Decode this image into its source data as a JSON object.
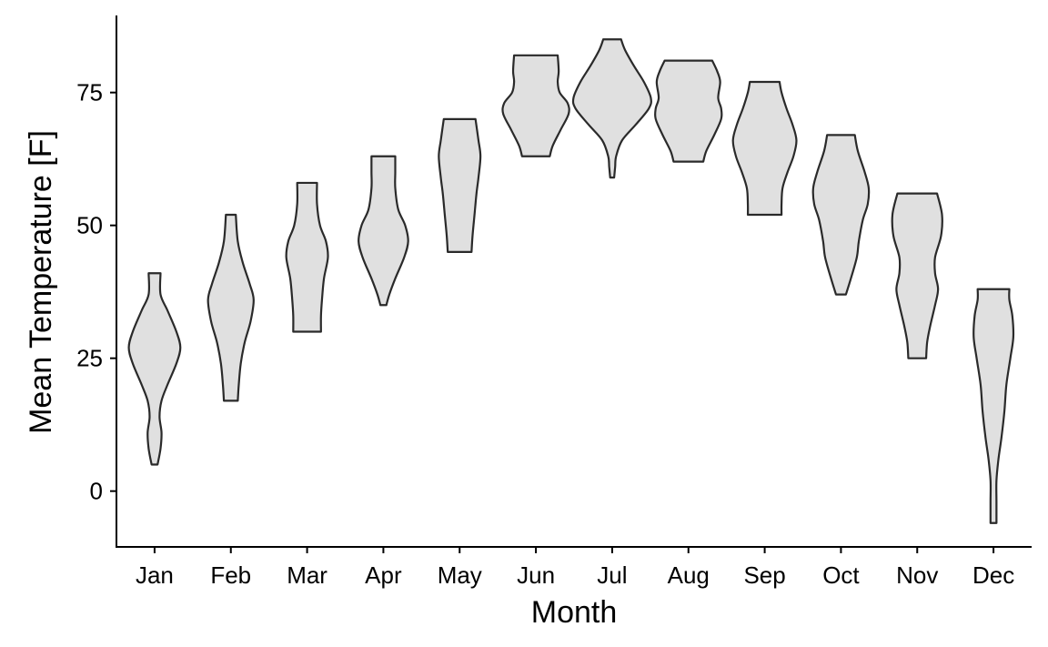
{
  "chart_data": {
    "type": "violin",
    "xlabel": "Month",
    "ylabel": "Mean Temperature [F]",
    "ylim": [
      -10.5,
      89.5
    ],
    "yticks": [
      0,
      25,
      50,
      75
    ],
    "grid": false,
    "legend": "none",
    "colors": {
      "fill": "#e0e0e0",
      "stroke": "#2a2a2a"
    },
    "categories": [
      "Jan",
      "Feb",
      "Mar",
      "Apr",
      "May",
      "Jun",
      "Jul",
      "Aug",
      "Sep",
      "Oct",
      "Nov",
      "Dec"
    ],
    "violins": [
      {
        "month": "Jan",
        "min": 5,
        "max": 41,
        "density": [
          [
            5,
            0.03
          ],
          [
            8,
            0.06
          ],
          [
            11,
            0.07
          ],
          [
            14,
            0.05
          ],
          [
            17,
            0.07
          ],
          [
            20,
            0.13
          ],
          [
            24,
            0.22
          ],
          [
            27,
            0.26
          ],
          [
            30,
            0.22
          ],
          [
            34,
            0.13
          ],
          [
            37,
            0.06
          ],
          [
            41,
            0.06
          ]
        ]
      },
      {
        "month": "Feb",
        "min": 17,
        "max": 52,
        "density": [
          [
            17,
            0.07
          ],
          [
            20,
            0.08
          ],
          [
            24,
            0.1
          ],
          [
            28,
            0.14
          ],
          [
            32,
            0.2
          ],
          [
            36,
            0.23
          ],
          [
            39,
            0.19
          ],
          [
            43,
            0.12
          ],
          [
            47,
            0.07
          ],
          [
            52,
            0.05
          ]
        ]
      },
      {
        "month": "Mar",
        "min": 30,
        "max": 58,
        "density": [
          [
            30,
            0.14
          ],
          [
            33,
            0.14
          ],
          [
            36,
            0.15
          ],
          [
            40,
            0.17
          ],
          [
            44,
            0.21
          ],
          [
            47,
            0.19
          ],
          [
            50,
            0.13
          ],
          [
            54,
            0.1
          ],
          [
            58,
            0.1
          ]
        ]
      },
      {
        "month": "Apr",
        "min": 35,
        "max": 63,
        "density": [
          [
            35,
            0.03
          ],
          [
            37,
            0.06
          ],
          [
            40,
            0.12
          ],
          [
            44,
            0.21
          ],
          [
            47,
            0.25
          ],
          [
            50,
            0.22
          ],
          [
            53,
            0.15
          ],
          [
            57,
            0.12
          ],
          [
            60,
            0.12
          ],
          [
            63,
            0.12
          ]
        ]
      },
      {
        "month": "May",
        "min": 45,
        "max": 70,
        "density": [
          [
            45,
            0.12
          ],
          [
            48,
            0.13
          ],
          [
            52,
            0.15
          ],
          [
            56,
            0.17
          ],
          [
            59,
            0.19
          ],
          [
            63,
            0.21
          ],
          [
            66,
            0.19
          ],
          [
            70,
            0.16
          ]
        ]
      },
      {
        "month": "Jun",
        "min": 63,
        "max": 82,
        "density": [
          [
            63,
            0.14
          ],
          [
            65,
            0.17
          ],
          [
            68,
            0.25
          ],
          [
            71,
            0.33
          ],
          [
            73,
            0.32
          ],
          [
            75,
            0.24
          ],
          [
            77,
            0.22
          ],
          [
            79,
            0.23
          ],
          [
            82,
            0.22
          ]
        ]
      },
      {
        "month": "Jul",
        "min": 59,
        "max": 85,
        "density": [
          [
            59,
            0.02
          ],
          [
            61,
            0.03
          ],
          [
            63,
            0.04
          ],
          [
            66,
            0.1
          ],
          [
            69,
            0.24
          ],
          [
            72,
            0.37
          ],
          [
            74,
            0.39
          ],
          [
            77,
            0.32
          ],
          [
            80,
            0.22
          ],
          [
            83,
            0.13
          ],
          [
            85,
            0.09
          ]
        ]
      },
      {
        "month": "Aug",
        "min": 62,
        "max": 81,
        "density": [
          [
            62,
            0.15
          ],
          [
            64,
            0.18
          ],
          [
            67,
            0.26
          ],
          [
            70,
            0.33
          ],
          [
            72,
            0.33
          ],
          [
            74,
            0.3
          ],
          [
            77,
            0.32
          ],
          [
            79,
            0.29
          ],
          [
            81,
            0.24
          ]
        ]
      },
      {
        "month": "Sep",
        "min": 52,
        "max": 77,
        "density": [
          [
            52,
            0.17
          ],
          [
            54,
            0.17
          ],
          [
            57,
            0.18
          ],
          [
            60,
            0.23
          ],
          [
            63,
            0.29
          ],
          [
            66,
            0.32
          ],
          [
            69,
            0.28
          ],
          [
            72,
            0.22
          ],
          [
            75,
            0.17
          ],
          [
            77,
            0.15
          ]
        ]
      },
      {
        "month": "Oct",
        "min": 37,
        "max": 67,
        "density": [
          [
            37,
            0.05
          ],
          [
            40,
            0.1
          ],
          [
            44,
            0.16
          ],
          [
            47,
            0.18
          ],
          [
            51,
            0.22
          ],
          [
            54,
            0.27
          ],
          [
            57,
            0.28
          ],
          [
            60,
            0.24
          ],
          [
            64,
            0.17
          ],
          [
            67,
            0.14
          ]
        ]
      },
      {
        "month": "Nov",
        "min": 25,
        "max": 56,
        "density": [
          [
            25,
            0.09
          ],
          [
            28,
            0.1
          ],
          [
            31,
            0.13
          ],
          [
            35,
            0.18
          ],
          [
            38,
            0.21
          ],
          [
            41,
            0.18
          ],
          [
            44,
            0.18
          ],
          [
            48,
            0.24
          ],
          [
            52,
            0.25
          ],
          [
            56,
            0.2
          ]
        ]
      },
      {
        "month": "Dec",
        "min": -6,
        "max": 38,
        "density": [
          [
            -6,
            0.03
          ],
          [
            -2,
            0.03
          ],
          [
            2,
            0.03
          ],
          [
            6,
            0.05
          ],
          [
            10,
            0.08
          ],
          [
            15,
            0.11
          ],
          [
            20,
            0.13
          ],
          [
            25,
            0.17
          ],
          [
            29,
            0.2
          ],
          [
            33,
            0.19
          ],
          [
            36,
            0.16
          ],
          [
            38,
            0.16
          ]
        ]
      }
    ]
  }
}
